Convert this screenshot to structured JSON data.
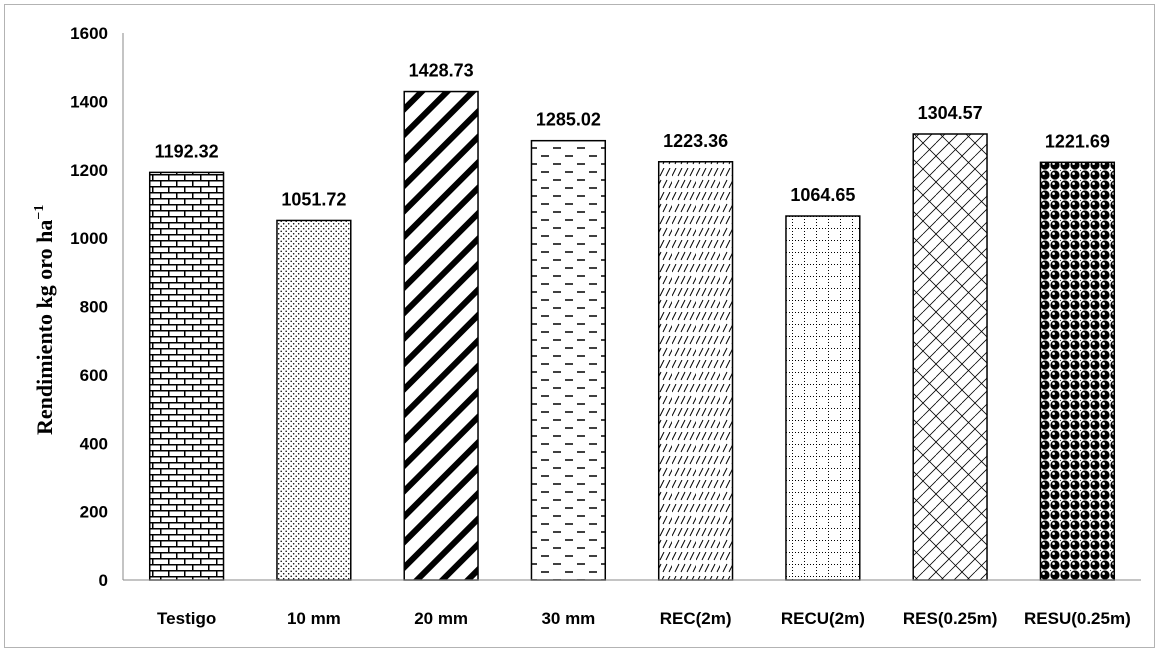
{
  "chart_data": {
    "type": "bar",
    "categories": [
      "Testigo",
      "10 mm",
      "20 mm",
      "30 mm",
      "REC(2m)",
      "RECU(2m)",
      "RES(0.25m)",
      "RESU(0.25m)"
    ],
    "values": [
      1192.32,
      1051.72,
      1428.73,
      1285.02,
      1223.36,
      1064.65,
      1304.57,
      1221.69
    ],
    "data_labels": [
      "1192.32",
      "1051.72",
      "1428.73",
      "1285.02",
      "1223.36",
      "1064.65",
      "1304.57",
      "1221.69"
    ],
    "patterns": [
      "brick",
      "dots",
      "wide-diagonal",
      "dashes",
      "light-diagonal",
      "dotted-grid",
      "diagonal-weave",
      "spheres"
    ],
    "yticks": [
      "0",
      "200",
      "400",
      "600",
      "800",
      "1000",
      "1200",
      "1400",
      "1600"
    ],
    "ylim": [
      0,
      1600
    ],
    "ylabel": "Rendimiento  kg oro  ha",
    "ylabel_exponent": "−1",
    "title": "",
    "xlabel": "",
    "grid": false,
    "legend": "none",
    "colors": {
      "outline": "#000000",
      "fill": "#ffffff"
    }
  }
}
